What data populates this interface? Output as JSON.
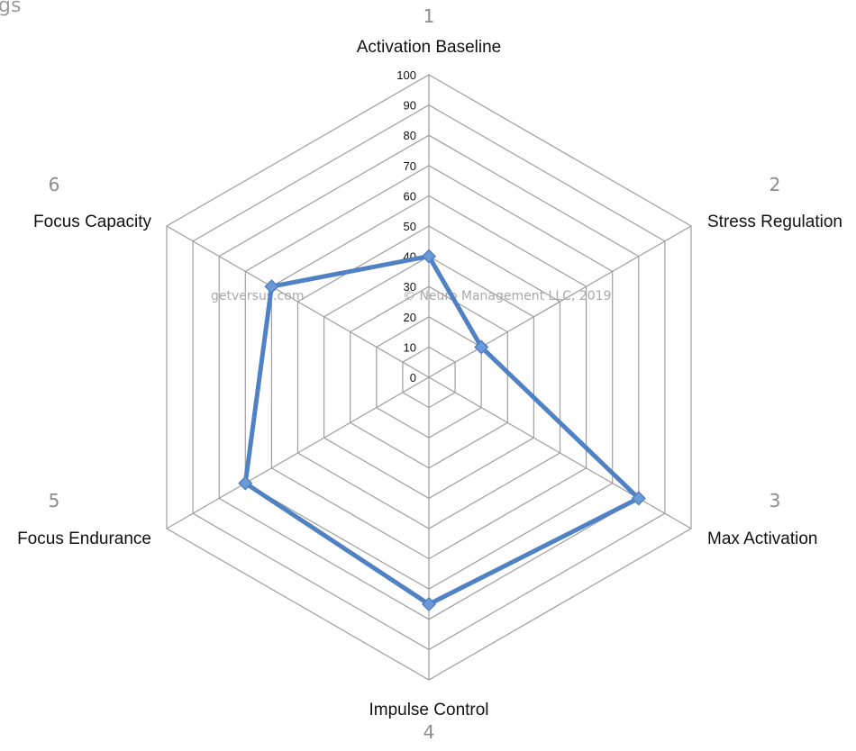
{
  "header": {
    "cut_text": "gs"
  },
  "watermarks": {
    "left": "getversus.com",
    "right": "© Neuro Management LLC, 2019"
  },
  "chart_data": {
    "type": "radar",
    "axes": [
      {
        "number": "1",
        "label": "Activation Baseline"
      },
      {
        "number": "2",
        "label": "Stress Regulation"
      },
      {
        "number": "3",
        "label": "Max Activation"
      },
      {
        "number": "4",
        "label": "Impulse Control"
      },
      {
        "number": "5",
        "label": "Focus Endurance"
      },
      {
        "number": "6",
        "label": "Focus Capacity"
      }
    ],
    "ticks": [
      "0",
      "10",
      "20",
      "30",
      "40",
      "50",
      "60",
      "70",
      "80",
      "90",
      "100"
    ],
    "range": [
      0,
      100
    ],
    "series": [
      {
        "values": [
          40,
          20,
          80,
          75,
          70,
          60
        ]
      }
    ],
    "colors": {
      "series": "#4f81c4",
      "grid": "#9e9e9e",
      "marker": "#6d9ad6"
    }
  }
}
